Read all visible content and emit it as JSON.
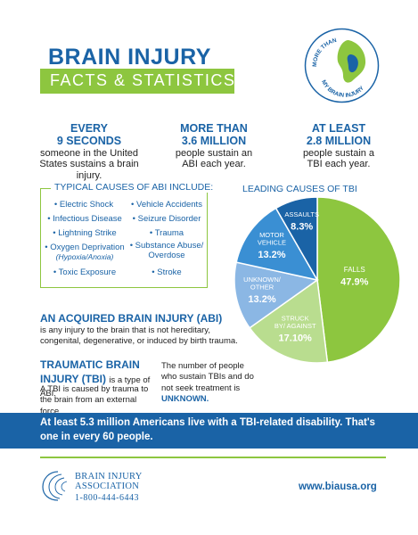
{
  "header": {
    "title": "BRAIN INJURY",
    "subtitle": "FACTS & STATISTICS"
  },
  "logo": {
    "top_text": "MORE THAN",
    "bottom_text": "MY BRAIN INJURY"
  },
  "stats": [
    {
      "big": "EVERY\n9 SECONDS",
      "small": "someone in the United States sustains a brain injury."
    },
    {
      "big": "MORE THAN\n3.6 MILLION",
      "small": "people sustain an ABI each year."
    },
    {
      "big": "AT LEAST\n2.8 MILLION",
      "small": "people sustain a TBI each year."
    }
  ],
  "causes": {
    "title": "TYPICAL CAUSES OF ABI INCLUDE:",
    "left": [
      "• Electric Shock",
      "• Infectious Disease",
      "• Lightning Strike",
      "• Oxygen Deprivation",
      "• Toxic Exposure"
    ],
    "left_note": "(Hypoxia/Anoxia)",
    "right": [
      "• Vehicle Accidents",
      "• Seizure Disorder",
      "• Trauma",
      "• Substance Abuse/",
      "• Stroke"
    ],
    "right_cont": "Overdose"
  },
  "chart_data": {
    "type": "pie",
    "title": "LEADING CAUSES OF TBI",
    "slices": [
      {
        "label": "FALLS",
        "value": 47.9,
        "display": "47.9%",
        "color": "#8dc63f"
      },
      {
        "label": "STRUCK BY/ AGAINST",
        "value": 17.1,
        "display": "17.10%",
        "color": "#b9dd8f"
      },
      {
        "label": "UNKNOWN/ OTHER",
        "value": 13.2,
        "display": "13.2%",
        "color": "#8bb7e4"
      },
      {
        "label": "MOTOR VEHICLE",
        "value": 13.2,
        "display": "13.2%",
        "color": "#3a8fd3"
      },
      {
        "label": "ASSAULTS",
        "value": 8.3,
        "display": "8.3%",
        "color": "#1a63a6"
      }
    ]
  },
  "abi": {
    "heading": "AN ACQUIRED BRAIN INJURY (ABI)",
    "text": "is any injury to the brain that is not hereditary, congenital, degenerative, or induced by birth trauma."
  },
  "tbi": {
    "heading": "TRAUMATIC BRAIN INJURY (TBI)",
    "inline": "is a type of ABI.",
    "text": "A TBI is caused by trauma to the brain from an external force."
  },
  "unseek": {
    "text": "The number of people who sustain TBIs and do not seek treatment is",
    "emphasis": "UNKNOWN."
  },
  "banner": {
    "text": "At least 5.3 million Americans live with a TBI-related disability. That's one in every 60 people."
  },
  "footer": {
    "org_line1": "BRAIN INJURY",
    "org_line2": "ASSOCIATION",
    "phone": "1-800-444-6443",
    "url": "www.biausa.org"
  },
  "colors": {
    "blue": "#1a63a6",
    "green": "#8dc63f"
  }
}
